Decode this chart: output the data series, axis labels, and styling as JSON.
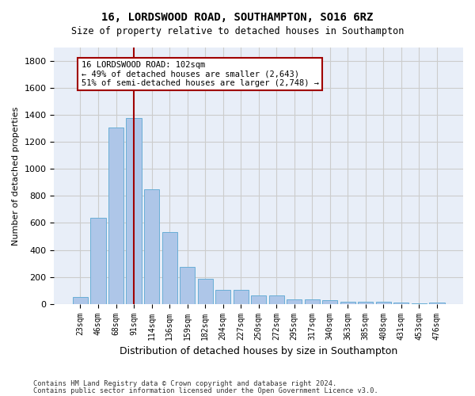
{
  "title_line1": "16, LORDSWOOD ROAD, SOUTHAMPTON, SO16 6RZ",
  "title_line2": "Size of property relative to detached houses in Southampton",
  "xlabel": "Distribution of detached houses by size in Southampton",
  "ylabel": "Number of detached properties",
  "bar_labels": [
    "23sqm",
    "46sqm",
    "68sqm",
    "91sqm",
    "114sqm",
    "136sqm",
    "159sqm",
    "182sqm",
    "204sqm",
    "227sqm",
    "250sqm",
    "272sqm",
    "295sqm",
    "317sqm",
    "340sqm",
    "363sqm",
    "385sqm",
    "408sqm",
    "431sqm",
    "453sqm",
    "476sqm"
  ],
  "bar_values": [
    50,
    640,
    1310,
    1380,
    850,
    530,
    275,
    185,
    105,
    105,
    60,
    60,
    35,
    35,
    27,
    15,
    15,
    15,
    10,
    5,
    10
  ],
  "bar_color": "#aec6e8",
  "bar_edge_color": "#6aaed6",
  "ylim": [
    0,
    1900
  ],
  "yticks": [
    0,
    200,
    400,
    600,
    800,
    1000,
    1200,
    1400,
    1600,
    1800
  ],
  "property_bin_index": 3,
  "vline_color": "#a00000",
  "annotation_line1": "16 LORDSWOOD ROAD: 102sqm",
  "annotation_line2": "← 49% of detached houses are smaller (2,643)",
  "annotation_line3": "51% of semi-detached houses are larger (2,748) →",
  "annotation_box_color": "#a00000",
  "footer_line1": "Contains HM Land Registry data © Crown copyright and database right 2024.",
  "footer_line2": "Contains public sector information licensed under the Open Government Licence v3.0.",
  "grid_color": "#cccccc",
  "background_color": "#e8eef8"
}
